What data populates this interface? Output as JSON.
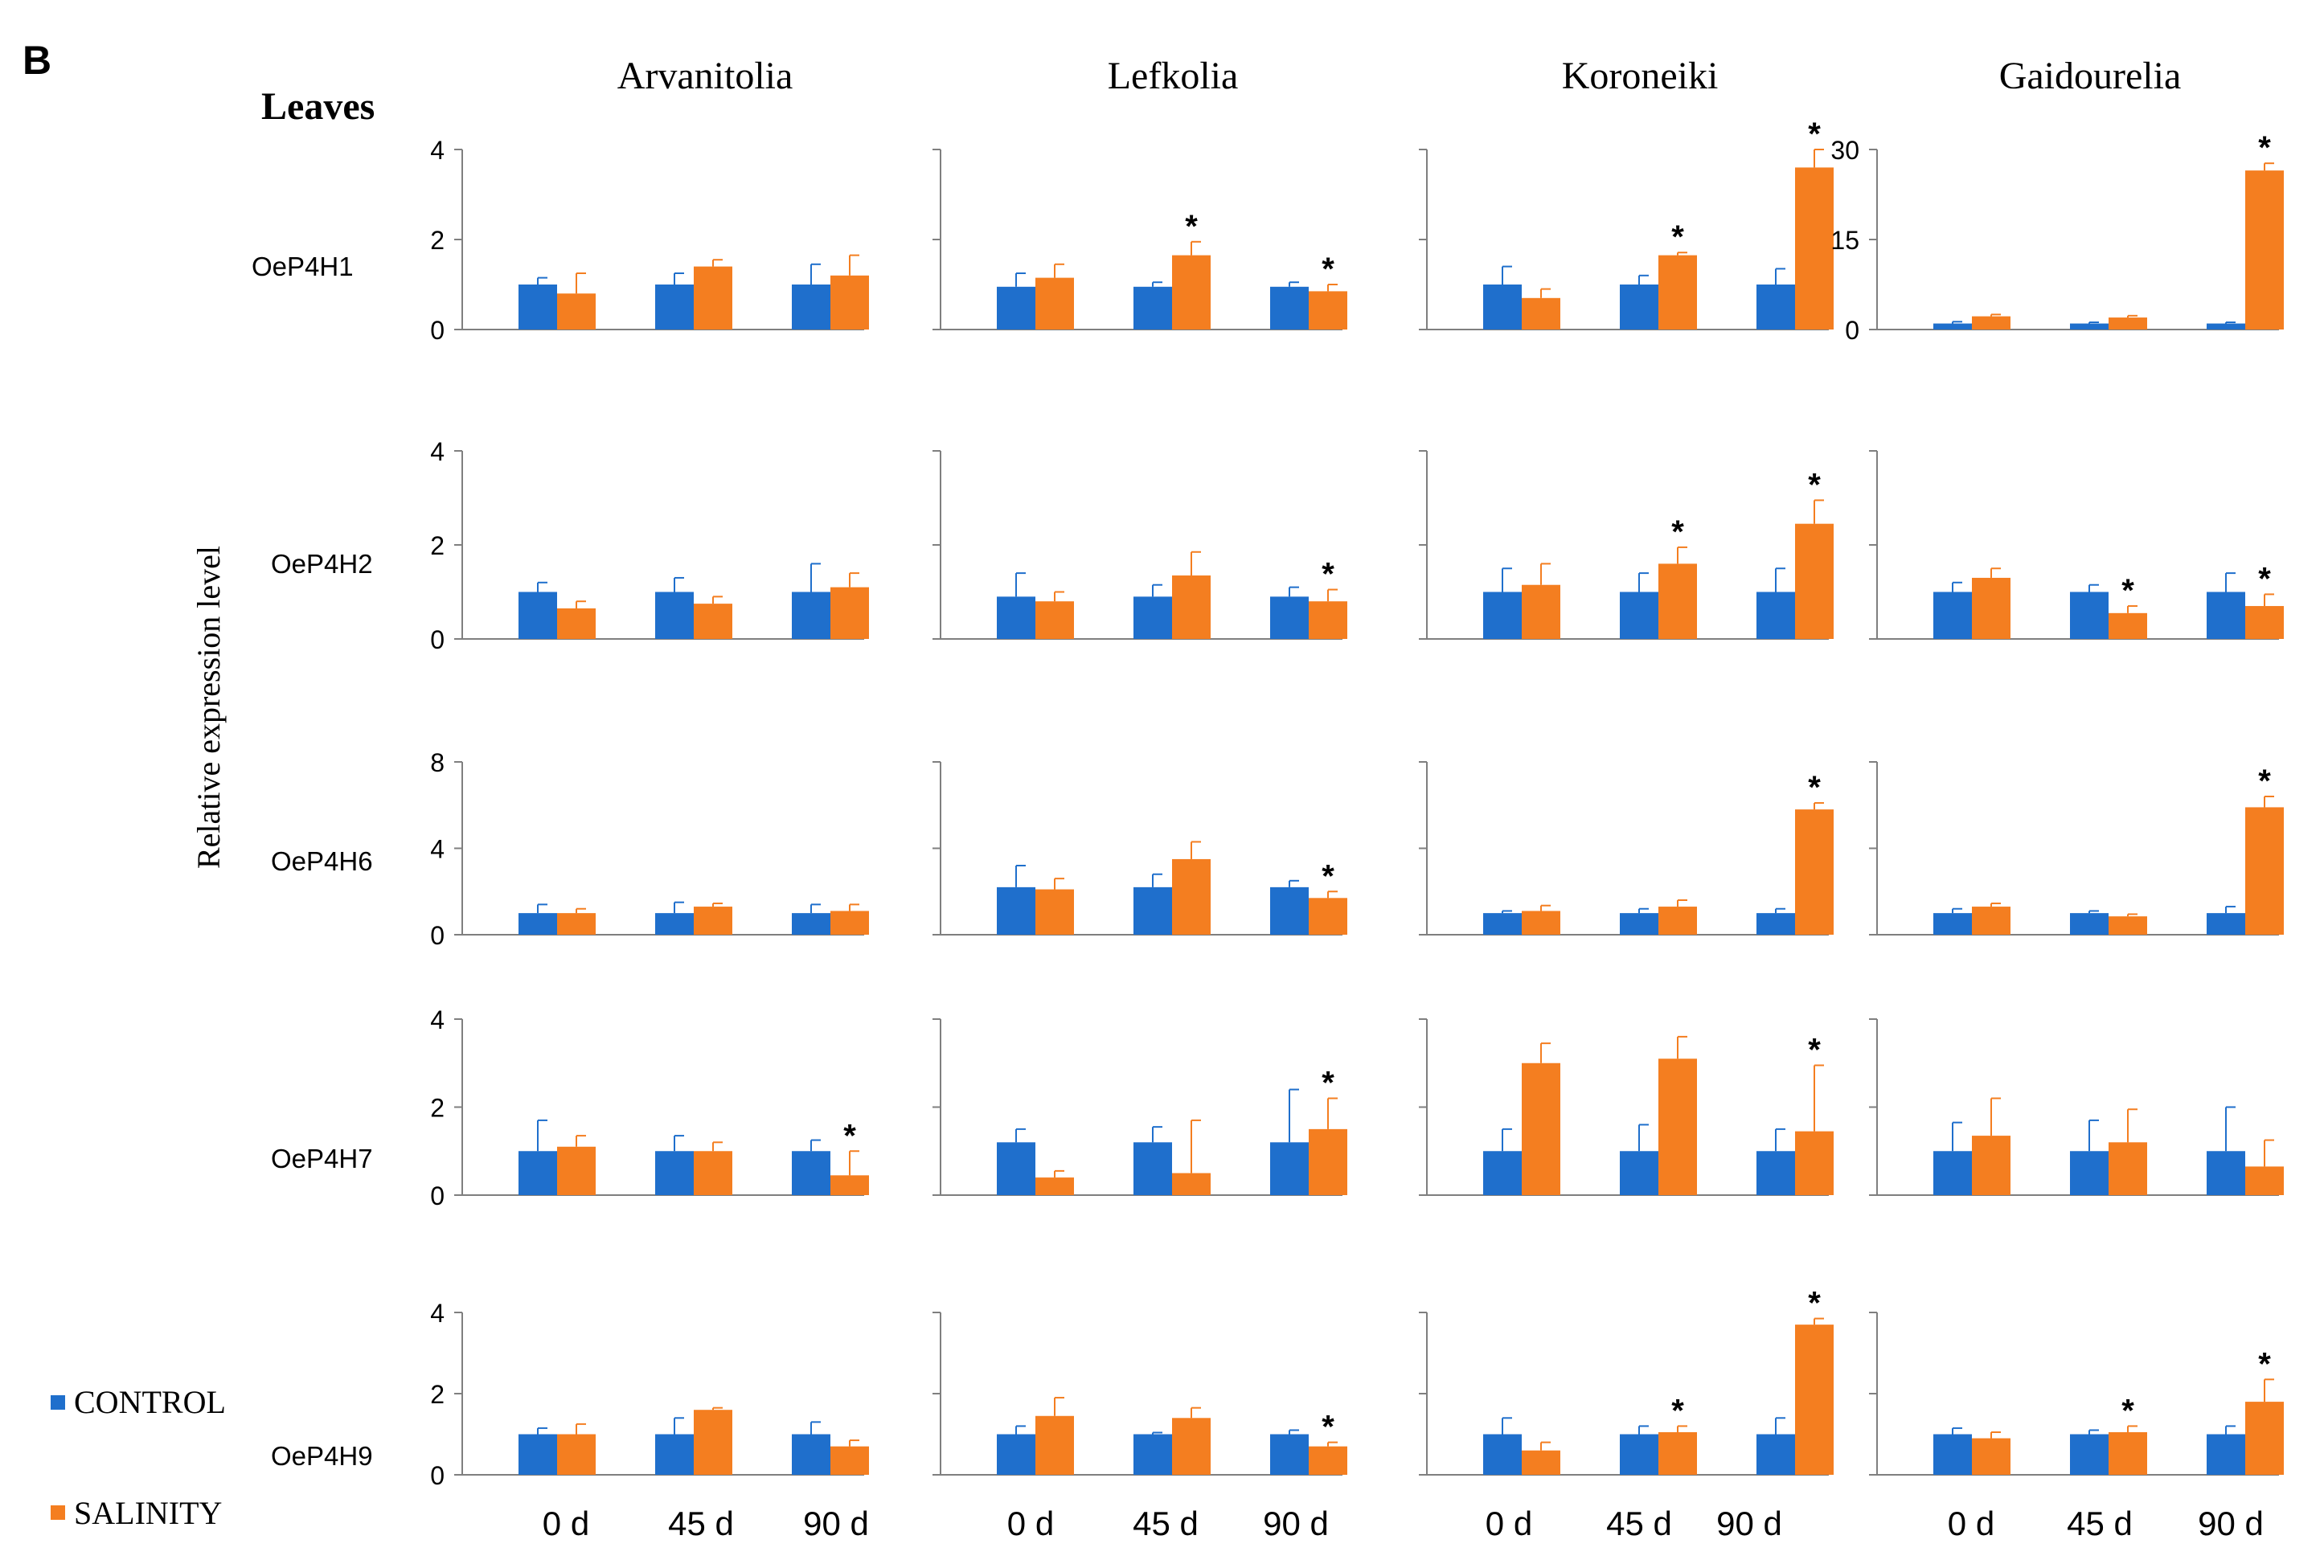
{
  "figure": {
    "panel_label": "B",
    "tissue_label": "Leaves",
    "ylabel": "Relative expression level",
    "legend": [
      {
        "name": "CONTROL",
        "color": "#1F6FCC"
      },
      {
        "name": "SALINITY",
        "color": "#F47E20"
      }
    ],
    "colors": {
      "control": "#1F6FCC",
      "salinity": "#F47E20",
      "axis": "#7f7f7f"
    }
  },
  "chart_data": {
    "type": "bar",
    "title": "Leaves",
    "xlabel": "",
    "ylabel": "Relative expression level",
    "categories": [
      "0 d",
      "45 d",
      "90 d"
    ],
    "cultivars": [
      "Arvanitolia",
      "Lefkolia",
      "Koroneiki",
      "Gaidourelia"
    ],
    "genes": [
      "OeP4H1",
      "OeP4H2",
      "OeP4H6",
      "OeP4H7",
      "OeP4H9"
    ],
    "panels": [
      {
        "gene": "OeP4H1",
        "cultivar": "Arvanitolia",
        "ylim": [
          0,
          4
        ],
        "ticks": [
          "0",
          "2",
          "4"
        ],
        "series": [
          {
            "name": "CONTROL",
            "values": [
              1.0,
              1.0,
              1.0
            ],
            "errors": [
              0.15,
              0.25,
              0.45
            ]
          },
          {
            "name": "SALINITY",
            "values": [
              0.8,
              1.4,
              1.2
            ],
            "errors": [
              0.45,
              0.15,
              0.45
            ]
          }
        ],
        "significant": [
          false,
          false,
          false
        ]
      },
      {
        "gene": "OeP4H1",
        "cultivar": "Lefkolia",
        "ylim": [
          0,
          4
        ],
        "ticks": [],
        "series": [
          {
            "name": "CONTROL",
            "values": [
              0.95,
              0.95,
              0.95
            ],
            "errors": [
              0.3,
              0.1,
              0.1
            ]
          },
          {
            "name": "SALINITY",
            "values": [
              1.15,
              1.65,
              0.85
            ],
            "errors": [
              0.3,
              0.3,
              0.15
            ]
          }
        ],
        "significant": [
          false,
          true,
          true
        ]
      },
      {
        "gene": "OeP4H1",
        "cultivar": "Koroneiki",
        "ylim": [
          0,
          4
        ],
        "ticks": [],
        "series": [
          {
            "name": "CONTROL",
            "values": [
              1.0,
              1.0,
              1.0
            ],
            "errors": [
              0.4,
              0.2,
              0.35
            ]
          },
          {
            "name": "SALINITY",
            "values": [
              0.7,
              1.65,
              3.6
            ],
            "errors": [
              0.2,
              0.06,
              0.4
            ]
          }
        ],
        "significant": [
          false,
          true,
          true
        ]
      },
      {
        "gene": "OeP4H1",
        "cultivar": "Gaidourelia",
        "ylim": [
          0,
          30
        ],
        "ticks": [
          "0",
          "15",
          "30"
        ],
        "series": [
          {
            "name": "CONTROL",
            "values": [
              1.0,
              1.0,
              1.0
            ],
            "errors": [
              0.3,
              0.2,
              0.2
            ]
          },
          {
            "name": "SALINITY",
            "values": [
              2.2,
              2.0,
              26.5
            ],
            "errors": [
              0.3,
              0.3,
              1.2
            ]
          }
        ],
        "significant": [
          false,
          false,
          true
        ]
      },
      {
        "gene": "OeP4H2",
        "cultivar": "Arvanitolia",
        "ylim": [
          0,
          4
        ],
        "ticks": [
          "0",
          "2",
          "4"
        ],
        "series": [
          {
            "name": "CONTROL",
            "values": [
              1.0,
              1.0,
              1.0
            ],
            "errors": [
              0.2,
              0.3,
              0.6
            ]
          },
          {
            "name": "SALINITY",
            "values": [
              0.65,
              0.75,
              1.1
            ],
            "errors": [
              0.15,
              0.15,
              0.3
            ]
          }
        ],
        "significant": [
          false,
          false,
          false
        ]
      },
      {
        "gene": "OeP4H2",
        "cultivar": "Lefkolia",
        "ylim": [
          0,
          4
        ],
        "ticks": [],
        "series": [
          {
            "name": "CONTROL",
            "values": [
              0.9,
              0.9,
              0.9
            ],
            "errors": [
              0.5,
              0.25,
              0.2
            ]
          },
          {
            "name": "SALINITY",
            "values": [
              0.8,
              1.35,
              0.8
            ],
            "errors": [
              0.2,
              0.5,
              0.25
            ]
          }
        ],
        "significant": [
          false,
          false,
          true
        ]
      },
      {
        "gene": "OeP4H2",
        "cultivar": "Koroneiki",
        "ylim": [
          0,
          4
        ],
        "ticks": [],
        "series": [
          {
            "name": "CONTROL",
            "values": [
              1.0,
              1.0,
              1.0
            ],
            "errors": [
              0.5,
              0.4,
              0.5
            ]
          },
          {
            "name": "SALINITY",
            "values": [
              1.15,
              1.6,
              2.45
            ],
            "errors": [
              0.45,
              0.35,
              0.5
            ]
          }
        ],
        "significant": [
          false,
          true,
          true
        ]
      },
      {
        "gene": "OeP4H2",
        "cultivar": "Gaidourelia",
        "ylim": [
          0,
          4
        ],
        "ticks": [],
        "series": [
          {
            "name": "CONTROL",
            "values": [
              1.0,
              1.0,
              1.0
            ],
            "errors": [
              0.2,
              0.15,
              0.4
            ]
          },
          {
            "name": "SALINITY",
            "values": [
              1.3,
              0.55,
              0.7
            ],
            "errors": [
              0.2,
              0.15,
              0.25
            ]
          }
        ],
        "significant": [
          false,
          true,
          true
        ]
      },
      {
        "gene": "OeP4H6",
        "cultivar": "Arvanitolia",
        "ylim": [
          0,
          8
        ],
        "ticks": [
          "0",
          "4",
          "8"
        ],
        "series": [
          {
            "name": "CONTROL",
            "values": [
              1.0,
              1.0,
              1.0
            ],
            "errors": [
              0.4,
              0.5,
              0.4
            ]
          },
          {
            "name": "SALINITY",
            "values": [
              1.0,
              1.3,
              1.1
            ],
            "errors": [
              0.2,
              0.15,
              0.3
            ]
          }
        ],
        "significant": [
          false,
          false,
          false
        ]
      },
      {
        "gene": "OeP4H6",
        "cultivar": "Lefkolia",
        "ylim": [
          0,
          8
        ],
        "ticks": [],
        "series": [
          {
            "name": "CONTROL",
            "values": [
              2.2,
              2.2,
              2.2
            ],
            "errors": [
              1.0,
              0.6,
              0.3
            ]
          },
          {
            "name": "SALINITY",
            "values": [
              2.1,
              3.5,
              1.7
            ],
            "errors": [
              0.5,
              0.8,
              0.3
            ]
          }
        ],
        "significant": [
          false,
          false,
          true
        ]
      },
      {
        "gene": "OeP4H6",
        "cultivar": "Koroneiki",
        "ylim": [
          0,
          8
        ],
        "ticks": [],
        "series": [
          {
            "name": "CONTROL",
            "values": [
              1.0,
              1.0,
              1.0
            ],
            "errors": [
              0.1,
              0.2,
              0.2
            ]
          },
          {
            "name": "SALINITY",
            "values": [
              1.1,
              1.3,
              5.8
            ],
            "errors": [
              0.25,
              0.3,
              0.3
            ]
          }
        ],
        "significant": [
          false,
          false,
          true
        ]
      },
      {
        "gene": "OeP4H6",
        "cultivar": "Gaidourelia",
        "ylim": [
          0,
          8
        ],
        "ticks": [],
        "series": [
          {
            "name": "CONTROL",
            "values": [
              1.0,
              1.0,
              1.0
            ],
            "errors": [
              0.2,
              0.1,
              0.3
            ]
          },
          {
            "name": "SALINITY",
            "values": [
              1.3,
              0.85,
              5.9
            ],
            "errors": [
              0.15,
              0.1,
              0.5
            ]
          }
        ],
        "significant": [
          false,
          false,
          true
        ]
      },
      {
        "gene": "OeP4H7",
        "cultivar": "Arvanitolia",
        "ylim": [
          0,
          4
        ],
        "ticks": [
          "0",
          "2",
          "4"
        ],
        "series": [
          {
            "name": "CONTROL",
            "values": [
              1.0,
              1.0,
              1.0
            ],
            "errors": [
              0.7,
              0.35,
              0.25
            ]
          },
          {
            "name": "SALINITY",
            "values": [
              1.1,
              1.0,
              0.45
            ],
            "errors": [
              0.25,
              0.2,
              0.55
            ]
          }
        ],
        "significant": [
          false,
          false,
          true
        ]
      },
      {
        "gene": "OeP4H7",
        "cultivar": "Lefkolia",
        "ylim": [
          0,
          4
        ],
        "ticks": [],
        "series": [
          {
            "name": "CONTROL",
            "values": [
              1.2,
              1.2,
              1.2
            ],
            "errors": [
              0.3,
              0.35,
              1.2
            ]
          },
          {
            "name": "SALINITY",
            "values": [
              0.4,
              0.5,
              1.5
            ],
            "errors": [
              0.15,
              1.2,
              0.7
            ]
          }
        ],
        "significant": [
          false,
          false,
          true
        ]
      },
      {
        "gene": "OeP4H7",
        "cultivar": "Koroneiki",
        "ylim": [
          0,
          4
        ],
        "ticks": [],
        "series": [
          {
            "name": "CONTROL",
            "values": [
              1.0,
              1.0,
              1.0
            ],
            "errors": [
              0.5,
              0.6,
              0.5
            ]
          },
          {
            "name": "SALINITY",
            "values": [
              3.0,
              3.1,
              1.45
            ],
            "errors": [
              0.45,
              0.5,
              1.5
            ]
          }
        ],
        "significant": [
          false,
          false,
          true
        ]
      },
      {
        "gene": "OeP4H7",
        "cultivar": "Gaidourelia",
        "ylim": [
          0,
          4
        ],
        "ticks": [],
        "series": [
          {
            "name": "CONTROL",
            "values": [
              1.0,
              1.0,
              1.0
            ],
            "errors": [
              0.65,
              0.7,
              1.0
            ]
          },
          {
            "name": "SALINITY",
            "values": [
              1.35,
              1.2,
              0.65
            ],
            "errors": [
              0.85,
              0.75,
              0.6
            ]
          }
        ],
        "significant": [
          false,
          false,
          false
        ]
      },
      {
        "gene": "OeP4H9",
        "cultivar": "Arvanitolia",
        "ylim": [
          0,
          4
        ],
        "ticks": [
          "0",
          "2",
          "4"
        ],
        "series": [
          {
            "name": "CONTROL",
            "values": [
              1.0,
              1.0,
              1.0
            ],
            "errors": [
              0.15,
              0.4,
              0.3
            ]
          },
          {
            "name": "SALINITY",
            "values": [
              1.0,
              1.6,
              0.7
            ],
            "errors": [
              0.25,
              0.05,
              0.15
            ]
          }
        ],
        "significant": [
          false,
          false,
          false
        ]
      },
      {
        "gene": "OeP4H9",
        "cultivar": "Lefkolia",
        "ylim": [
          0,
          4
        ],
        "ticks": [],
        "series": [
          {
            "name": "CONTROL",
            "values": [
              1.0,
              1.0,
              1.0
            ],
            "errors": [
              0.2,
              0.04,
              0.1
            ]
          },
          {
            "name": "SALINITY",
            "values": [
              1.45,
              1.4,
              0.7
            ],
            "errors": [
              0.45,
              0.25,
              0.1
            ]
          }
        ],
        "significant": [
          false,
          false,
          true
        ]
      },
      {
        "gene": "OeP4H9",
        "cultivar": "Koroneiki",
        "ylim": [
          0,
          4
        ],
        "ticks": [],
        "series": [
          {
            "name": "CONTROL",
            "values": [
              1.0,
              1.0,
              1.0
            ],
            "errors": [
              0.4,
              0.2,
              0.4
            ]
          },
          {
            "name": "SALINITY",
            "values": [
              0.6,
              1.05,
              3.7
            ],
            "errors": [
              0.2,
              0.15,
              0.15
            ]
          }
        ],
        "significant": [
          false,
          true,
          true
        ]
      },
      {
        "gene": "OeP4H9",
        "cultivar": "Gaidourelia",
        "ylim": [
          0,
          4
        ],
        "ticks": [],
        "series": [
          {
            "name": "CONTROL",
            "values": [
              1.0,
              1.0,
              1.0
            ],
            "errors": [
              0.15,
              0.1,
              0.2
            ]
          },
          {
            "name": "SALINITY",
            "values": [
              0.9,
              1.05,
              1.8
            ],
            "errors": [
              0.15,
              0.15,
              0.55
            ]
          }
        ],
        "significant": [
          false,
          true,
          true
        ]
      }
    ]
  }
}
